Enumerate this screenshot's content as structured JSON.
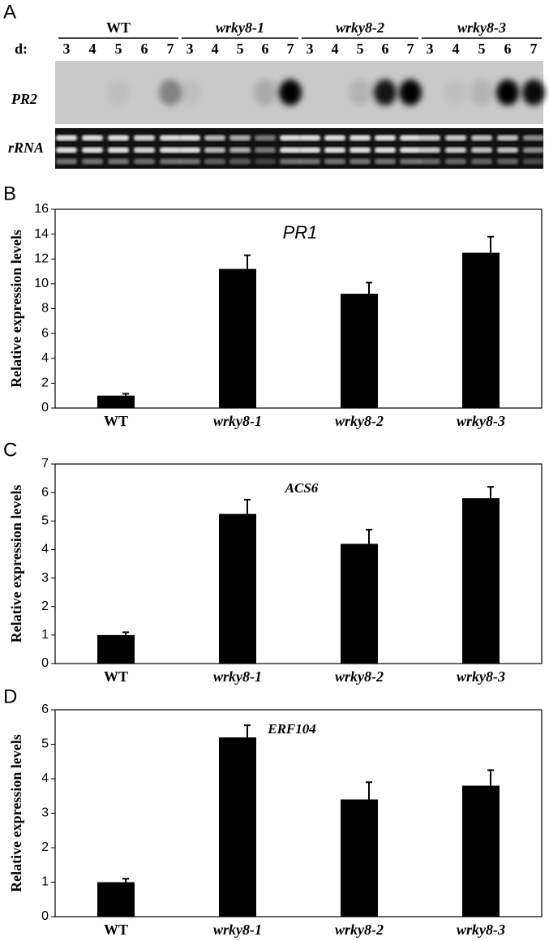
{
  "panel_labels": [
    "A",
    "B",
    "C",
    "D"
  ],
  "blot": {
    "day_prefix": "d:",
    "groups": [
      {
        "name": "WT",
        "days": [
          3,
          4,
          5,
          6,
          7
        ]
      },
      {
        "name": "wrky8-1",
        "days": [
          3,
          4,
          5,
          6,
          7
        ]
      },
      {
        "name": "wrky8-2",
        "days": [
          3,
          4,
          5,
          6,
          7
        ]
      },
      {
        "name": "wrky8-3",
        "days": [
          3,
          4,
          5,
          6,
          7
        ]
      }
    ],
    "rows": [
      "PR2",
      "rRNA"
    ]
  },
  "chart_data": [
    {
      "type": "bar",
      "title": "PR1",
      "y_label": "Relative expression levels",
      "categories": [
        "WT",
        "wrky8-1",
        "wrky8-2",
        "wrky8-3"
      ],
      "values": [
        1.0,
        11.2,
        9.2,
        12.5
      ],
      "errors": [
        0.15,
        1.1,
        0.9,
        1.3
      ],
      "color": "#000000",
      "ylim": [
        0,
        16
      ],
      "yticks": [
        0,
        2,
        4,
        6,
        8,
        10,
        12,
        14,
        16
      ]
    },
    {
      "type": "bar",
      "title": "ACS6",
      "y_label": "Relative expression levels",
      "categories": [
        "WT",
        "wrky8-1",
        "wrky8-2",
        "wrky8-3"
      ],
      "values": [
        1.0,
        5.25,
        4.2,
        5.8
      ],
      "errors": [
        0.1,
        0.5,
        0.5,
        0.4
      ],
      "color": "#000000",
      "ylim": [
        0,
        7
      ],
      "yticks": [
        0,
        1,
        2,
        3,
        4,
        5,
        6,
        7
      ]
    },
    {
      "type": "bar",
      "title": "ERF104",
      "y_label": "Relative expression levels",
      "categories": [
        "WT",
        "wrky8-1",
        "wrky8-2",
        "wrky8-3"
      ],
      "values": [
        1.0,
        5.2,
        3.4,
        3.8
      ],
      "errors": [
        0.1,
        0.35,
        0.5,
        0.45
      ],
      "color": "#000000",
      "ylim": [
        0,
        6
      ],
      "yticks": [
        0,
        1,
        2,
        3,
        4,
        5,
        6
      ]
    }
  ]
}
